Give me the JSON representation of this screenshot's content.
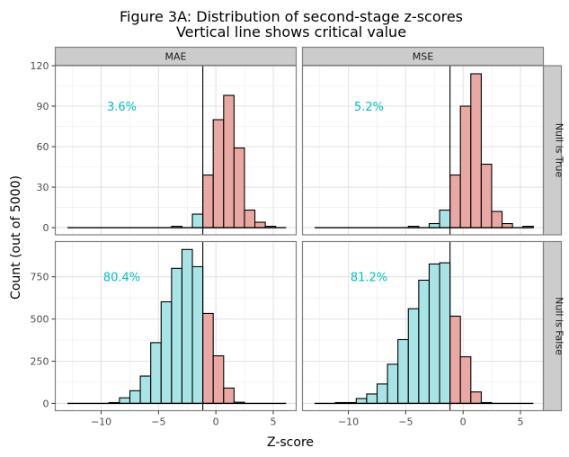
{
  "chart_data": {
    "type": "bar",
    "subtype": "faceted-histogram",
    "title": "Figure 3A: Distribution of second-stage z-scores",
    "subtitle": "Vertical line shows critical value",
    "xlabel": "Z-score",
    "ylabel": "Count (out of 5000)",
    "critical_value": -1.14,
    "bin_width": 0.908,
    "bin_start": -12.944,
    "xlim": [
      -14,
      7
    ],
    "x_ticks": [
      -10,
      -5,
      0,
      5
    ],
    "x_tick_labels": [
      "−10",
      "−5",
      "0",
      "5"
    ],
    "grid": true,
    "colors": {
      "below_critical_fill": "#A8E4E6",
      "above_critical_fill": "#E9A8A4",
      "bar_outline": "#000000",
      "annotation": "#00BFC4",
      "strip_fill": "#CCCCCC",
      "strip_border": "#808080",
      "panel_border": "#7F7F7F",
      "grid_major": "#E3E3E3",
      "grid_minor": "#F0F0F0"
    },
    "columns": [
      "MAE",
      "MSE"
    ],
    "rows": [
      {
        "label": "Null is True",
        "ylim": [
          -5.3,
          120
        ],
        "y_ticks": [
          0,
          30,
          60,
          90,
          120
        ],
        "y_tick_labels": [
          "0",
          "30",
          "60",
          "90",
          "120"
        ]
      },
      {
        "label": "Null is False",
        "ylim": [
          -43,
          959
        ],
        "y_ticks": [
          0,
          250,
          500,
          750
        ],
        "y_tick_labels": [
          "0",
          "250",
          "500",
          "750"
        ]
      }
    ],
    "panels": [
      {
        "column": "MAE",
        "row": "Null is True",
        "annotation": "3.6%",
        "counts": [
          0,
          0,
          0,
          0,
          0,
          0,
          0,
          0,
          0,
          0,
          1,
          0,
          10,
          39,
          80,
          98,
          59,
          13,
          4,
          1,
          0
        ]
      },
      {
        "column": "MSE",
        "row": "Null is True",
        "annotation": "5.2%",
        "counts": [
          0,
          0,
          0,
          0,
          0,
          0,
          0,
          0,
          0,
          1,
          0,
          3,
          13,
          39,
          90,
          114,
          47,
          12,
          3,
          0,
          1
        ]
      },
      {
        "column": "MAE",
        "row": "Null is False",
        "annotation": "80.4%",
        "counts": [
          0,
          0,
          0,
          0,
          5,
          33,
          75,
          162,
          360,
          602,
          800,
          912,
          810,
          533,
          282,
          91,
          7,
          0,
          0,
          0,
          0
        ]
      },
      {
        "column": "MSE",
        "row": "Null is False",
        "annotation": "81.2%",
        "counts": [
          0,
          0,
          5,
          5,
          29,
          56,
          115,
          232,
          378,
          561,
          730,
          826,
          833,
          517,
          276,
          68,
          5,
          0,
          0,
          0,
          0
        ]
      }
    ]
  }
}
